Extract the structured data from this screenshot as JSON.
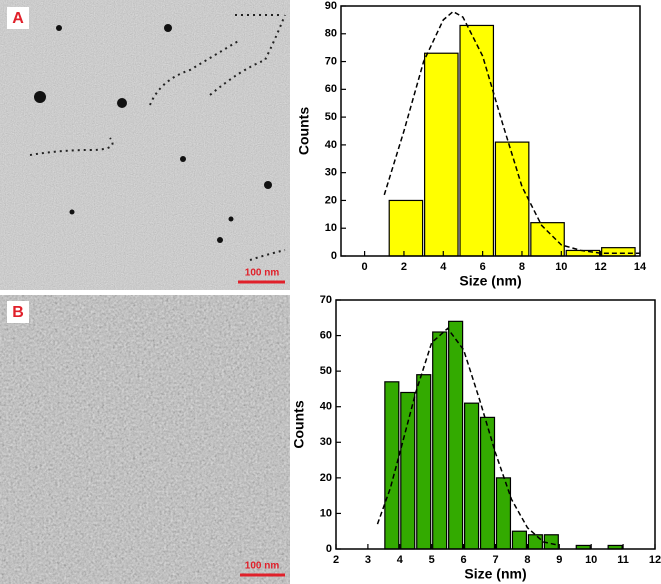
{
  "panels": [
    {
      "label": "A",
      "scale_bar": "100 nm"
    },
    {
      "label": "B",
      "scale_bar": "100 nm"
    }
  ],
  "chart_data": [
    {
      "type": "histogram",
      "x_label": "Size (nm)",
      "y_label": "Counts",
      "color": "#ffff00",
      "bins": [
        1.2,
        3,
        4.8,
        6.6,
        8.4,
        10.2,
        12,
        13.8
      ],
      "values": [
        20,
        73,
        83,
        41,
        12,
        2,
        3
      ],
      "xlim": [
        -1.2,
        14
      ],
      "xticks": [
        0,
        2,
        4,
        6,
        8,
        10,
        12,
        14
      ],
      "ylim": [
        0,
        90
      ],
      "yticks": [
        0,
        10,
        20,
        30,
        40,
        50,
        60,
        70,
        80,
        90
      ],
      "fit": {
        "x": [
          1,
          2,
          3,
          4,
          4.5,
          5,
          6,
          7,
          8,
          9,
          10,
          11,
          12,
          13,
          14
        ],
        "y": [
          22,
          45,
          70,
          85,
          88,
          86,
          72,
          48,
          25,
          11,
          4,
          2,
          1,
          1,
          1
        ]
      }
    },
    {
      "type": "histogram",
      "x_label": "Size (nm)",
      "y_label": "Counts",
      "color": "#33aa00",
      "bins": [
        3.5,
        4,
        4.5,
        5,
        5.5,
        6,
        6.5,
        7,
        7.5,
        8,
        8.5,
        9,
        9.5,
        10,
        10.5,
        11
      ],
      "values": [
        47,
        44,
        49,
        61,
        64,
        41,
        37,
        20,
        5,
        4,
        4,
        0,
        1,
        0,
        1
      ],
      "xlim": [
        2,
        12
      ],
      "xticks": [
        2,
        3,
        4,
        5,
        6,
        7,
        8,
        9,
        10,
        11,
        12
      ],
      "ylim": [
        0,
        70
      ],
      "yticks": [
        0,
        10,
        20,
        30,
        40,
        50,
        60,
        70
      ],
      "fit": {
        "x": [
          3.3,
          3.7,
          4,
          4.5,
          5,
          5.5,
          6,
          6.5,
          7,
          7.5,
          8,
          8.5,
          9
        ],
        "y": [
          7,
          17,
          27,
          44,
          58,
          62,
          56,
          42,
          27,
          14,
          6,
          2,
          1
        ]
      }
    }
  ]
}
